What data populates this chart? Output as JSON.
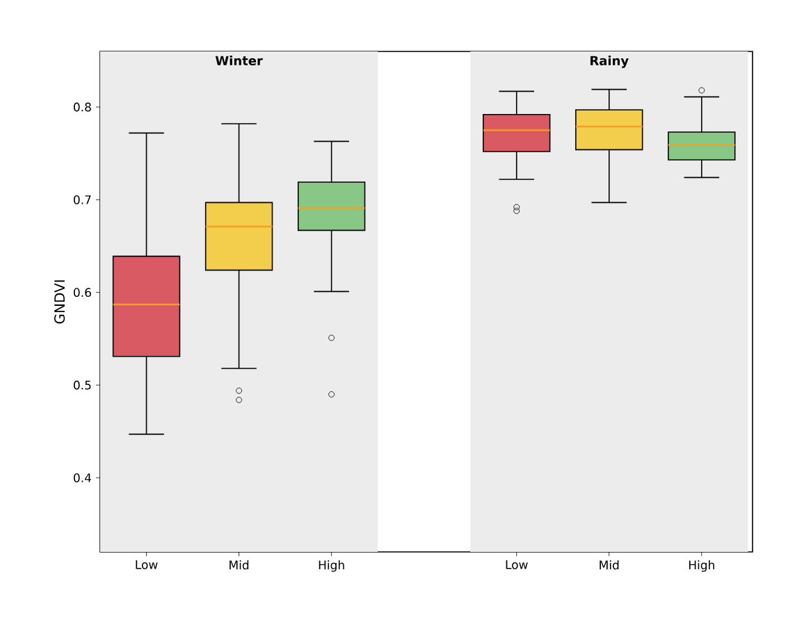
{
  "chart_data": {
    "type": "box",
    "ylabel": "GNDVI",
    "categories": [
      "Low",
      "Mid",
      "High",
      null,
      "Low",
      "Mid",
      "High"
    ],
    "colors": [
      "#d95a62",
      "#f3cd4c",
      "#88c785",
      null,
      "#d95a62",
      "#f3cd4c",
      "#88c785"
    ],
    "boxes": [
      {
        "low": 0.447,
        "q1": 0.531,
        "median": 0.587,
        "q3": 0.639,
        "high": 0.772
      },
      {
        "low": 0.518,
        "q1": 0.624,
        "median": 0.671,
        "q3": 0.697,
        "high": 0.782,
        "outliers": [
          0.494,
          0.484
        ]
      },
      {
        "low": 0.601,
        "q1": 0.667,
        "median": 0.691,
        "q3": 0.719,
        "high": 0.763,
        "outliers": [
          0.551,
          0.49
        ]
      },
      null,
      {
        "low": 0.722,
        "q1": 0.752,
        "median": 0.775,
        "q3": 0.792,
        "high": 0.817,
        "outliers": [
          0.692,
          0.688
        ]
      },
      {
        "low": 0.697,
        "q1": 0.754,
        "median": 0.779,
        "q3": 0.797,
        "high": 0.819
      },
      {
        "low": 0.724,
        "q1": 0.743,
        "median": 0.759,
        "q3": 0.773,
        "high": 0.811,
        "outliers": [
          0.818
        ]
      }
    ],
    "annotations": [
      "Winter",
      "Rainy"
    ],
    "ylim": [
      0.32,
      0.86
    ],
    "yticks": [
      0.4,
      0.5,
      0.6,
      0.7,
      0.8
    ],
    "grid": false
  }
}
